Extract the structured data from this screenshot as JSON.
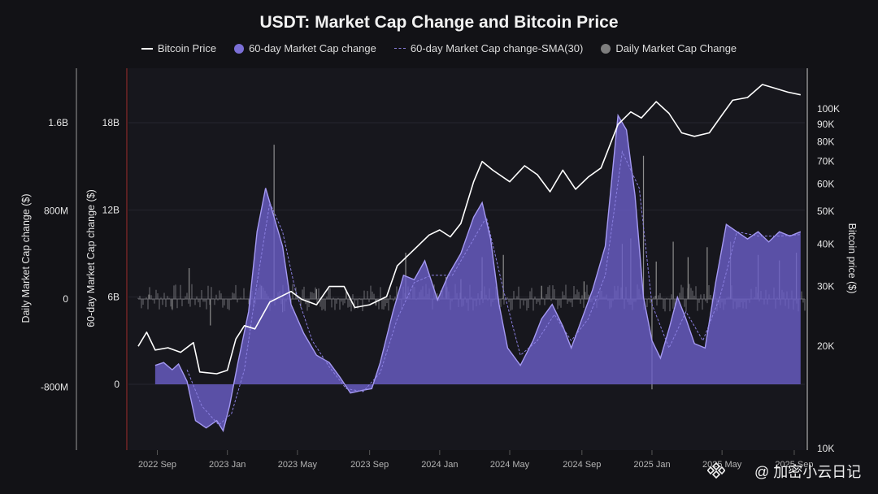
{
  "chart_data": {
    "type": "line+area",
    "title": "USDT: Market Cap Change and Bitcoin Price",
    "legend": [
      "Bitcoin Price",
      "60-day Market Cap change",
      "60-day Market Cap change-SMA(30)",
      "Daily Market Cap Change"
    ],
    "colors": {
      "btc": "#ffffff",
      "area": "#7b6fd6",
      "sma": "#8a7fe0",
      "daily": "#8e8e8e"
    },
    "left_axis_1": {
      "label": "Daily Market Cap change ($)",
      "ticks": [
        "1.6B",
        "800M",
        "0",
        "-800M"
      ],
      "values": [
        1.6,
        0.8,
        0,
        -0.8
      ]
    },
    "left_axis_2": {
      "label": "60-day Market Cap change ($)",
      "ticks": [
        "18B",
        "12B",
        "6B",
        "0"
      ],
      "values": [
        18,
        12,
        6,
        0
      ]
    },
    "right_axis": {
      "label": "Bitcoin price ($)",
      "ticks": [
        "100K",
        "90K",
        "80K",
        "70K",
        "60K",
        "50K",
        "40K",
        "30K",
        "20K",
        "10K"
      ],
      "values": [
        100,
        90,
        80,
        70,
        60,
        50,
        40,
        30,
        20,
        10
      ],
      "scale": "log"
    },
    "x_ticks": [
      "2022 Sep",
      "2023 Jan",
      "2023 May",
      "2023 Sep",
      "2024 Jan",
      "2024 May",
      "2024 Sep",
      "2025 Jan",
      "2025 May",
      "2025 Sep"
    ],
    "x_tick_t": [
      2022.67,
      2023.0,
      2023.33,
      2023.67,
      2024.0,
      2024.33,
      2024.67,
      2025.0,
      2025.33,
      2025.67
    ],
    "x_range": [
      2022.58,
      2025.72
    ],
    "btc_price_k": [
      [
        2022.58,
        20
      ],
      [
        2022.62,
        22
      ],
      [
        2022.66,
        19.5
      ],
      [
        2022.72,
        19.8
      ],
      [
        2022.78,
        19.2
      ],
      [
        2022.84,
        20.5
      ],
      [
        2022.87,
        16.8
      ],
      [
        2022.95,
        16.6
      ],
      [
        2023.0,
        17
      ],
      [
        2023.04,
        21
      ],
      [
        2023.08,
        23
      ],
      [
        2023.13,
        22.5
      ],
      [
        2023.2,
        27
      ],
      [
        2023.3,
        29
      ],
      [
        2023.35,
        27.5
      ],
      [
        2023.42,
        26.5
      ],
      [
        2023.48,
        30
      ],
      [
        2023.55,
        30
      ],
      [
        2023.6,
        26
      ],
      [
        2023.67,
        26.5
      ],
      [
        2023.75,
        28
      ],
      [
        2023.8,
        34.5
      ],
      [
        2023.86,
        37.5
      ],
      [
        2023.95,
        42.5
      ],
      [
        2024.0,
        44
      ],
      [
        2024.05,
        42
      ],
      [
        2024.1,
        46
      ],
      [
        2024.16,
        61
      ],
      [
        2024.2,
        70
      ],
      [
        2024.25,
        66
      ],
      [
        2024.33,
        61
      ],
      [
        2024.4,
        68
      ],
      [
        2024.46,
        64
      ],
      [
        2024.52,
        57
      ],
      [
        2024.58,
        66
      ],
      [
        2024.64,
        58
      ],
      [
        2024.7,
        63
      ],
      [
        2024.76,
        67
      ],
      [
        2024.84,
        90
      ],
      [
        2024.9,
        98
      ],
      [
        2024.95,
        94
      ],
      [
        2025.02,
        105
      ],
      [
        2025.08,
        97
      ],
      [
        2025.14,
        85
      ],
      [
        2025.2,
        83
      ],
      [
        2025.27,
        85
      ],
      [
        2025.33,
        96
      ],
      [
        2025.38,
        106
      ],
      [
        2025.45,
        108
      ],
      [
        2025.52,
        118
      ],
      [
        2025.58,
        115
      ],
      [
        2025.64,
        112
      ],
      [
        2025.7,
        110
      ]
    ],
    "mcap_60d_b": [
      [
        2022.66,
        1.3
      ],
      [
        2022.7,
        1.5
      ],
      [
        2022.74,
        1.0
      ],
      [
        2022.77,
        1.4
      ],
      [
        2022.81,
        0.2
      ],
      [
        2022.85,
        -2.5
      ],
      [
        2022.9,
        -3.0
      ],
      [
        2022.95,
        -2.5
      ],
      [
        2022.98,
        -3.2
      ],
      [
        2023.01,
        -1.5
      ],
      [
        2023.05,
        1.5
      ],
      [
        2023.1,
        5.0
      ],
      [
        2023.14,
        10.5
      ],
      [
        2023.18,
        13.5
      ],
      [
        2023.22,
        11.5
      ],
      [
        2023.26,
        9.5
      ],
      [
        2023.3,
        5.5
      ],
      [
        2023.36,
        3.5
      ],
      [
        2023.42,
        2.0
      ],
      [
        2023.48,
        1.5
      ],
      [
        2023.53,
        0.5
      ],
      [
        2023.58,
        -0.6
      ],
      [
        2023.64,
        -0.4
      ],
      [
        2023.68,
        -0.3
      ],
      [
        2023.72,
        1.5
      ],
      [
        2023.78,
        5.0
      ],
      [
        2023.83,
        7.5
      ],
      [
        2023.88,
        7.2
      ],
      [
        2023.93,
        8.5
      ],
      [
        2023.99,
        5.8
      ],
      [
        2024.04,
        7.5
      ],
      [
        2024.1,
        9.0
      ],
      [
        2024.16,
        11.5
      ],
      [
        2024.2,
        12.5
      ],
      [
        2024.24,
        10.0
      ],
      [
        2024.28,
        5.5
      ],
      [
        2024.32,
        2.5
      ],
      [
        2024.38,
        1.3
      ],
      [
        2024.44,
        3.0
      ],
      [
        2024.48,
        4.5
      ],
      [
        2024.53,
        5.5
      ],
      [
        2024.58,
        4.0
      ],
      [
        2024.62,
        2.5
      ],
      [
        2024.67,
        4.5
      ],
      [
        2024.72,
        6.5
      ],
      [
        2024.78,
        9.5
      ],
      [
        2024.84,
        18.5
      ],
      [
        2024.88,
        17.5
      ],
      [
        2024.92,
        13.0
      ],
      [
        2024.96,
        6.0
      ],
      [
        2025.0,
        3.0
      ],
      [
        2025.04,
        1.8
      ],
      [
        2025.08,
        3.8
      ],
      [
        2025.12,
        6.0
      ],
      [
        2025.16,
        4.5
      ],
      [
        2025.2,
        2.8
      ],
      [
        2025.25,
        2.5
      ],
      [
        2025.3,
        7.0
      ],
      [
        2025.35,
        11.0
      ],
      [
        2025.4,
        10.5
      ],
      [
        2025.45,
        10.0
      ],
      [
        2025.5,
        10.5
      ],
      [
        2025.55,
        9.8
      ],
      [
        2025.6,
        10.5
      ],
      [
        2025.65,
        10.2
      ],
      [
        2025.7,
        10.5
      ]
    ],
    "mcap_sma30_b": [
      [
        2022.81,
        1.0
      ],
      [
        2022.88,
        -1.5
      ],
      [
        2022.96,
        -2.8
      ],
      [
        2023.02,
        -2.0
      ],
      [
        2023.08,
        1.0
      ],
      [
        2023.14,
        7.0
      ],
      [
        2023.2,
        12.5
      ],
      [
        2023.26,
        10.5
      ],
      [
        2023.32,
        6.5
      ],
      [
        2023.4,
        3.0
      ],
      [
        2023.48,
        1.2
      ],
      [
        2023.56,
        -0.3
      ],
      [
        2023.64,
        -0.5
      ],
      [
        2023.72,
        0.8
      ],
      [
        2023.8,
        4.5
      ],
      [
        2023.88,
        7.0
      ],
      [
        2023.96,
        7.5
      ],
      [
        2024.06,
        7.5
      ],
      [
        2024.14,
        9.5
      ],
      [
        2024.22,
        11.5
      ],
      [
        2024.3,
        6.5
      ],
      [
        2024.38,
        2.0
      ],
      [
        2024.46,
        3.0
      ],
      [
        2024.54,
        4.8
      ],
      [
        2024.62,
        3.0
      ],
      [
        2024.7,
        4.5
      ],
      [
        2024.78,
        7.5
      ],
      [
        2024.86,
        16.0
      ],
      [
        2024.94,
        13.5
      ],
      [
        2025.0,
        5.5
      ],
      [
        2025.08,
        2.5
      ],
      [
        2025.16,
        5.0
      ],
      [
        2025.24,
        3.0
      ],
      [
        2025.32,
        6.0
      ],
      [
        2025.4,
        10.5
      ],
      [
        2025.5,
        10.2
      ],
      [
        2025.6,
        10.2
      ],
      [
        2025.7,
        10.3
      ]
    ],
    "daily_spikes_m": [
      [
        2022.63,
        40
      ],
      [
        2022.74,
        -90
      ],
      [
        2022.82,
        280
      ],
      [
        2022.92,
        -240
      ],
      [
        2023.16,
        120
      ],
      [
        2023.22,
        1400
      ],
      [
        2023.26,
        -120
      ],
      [
        2023.42,
        90
      ],
      [
        2023.56,
        80
      ],
      [
        2023.7,
        -60
      ],
      [
        2023.84,
        420
      ],
      [
        2024.03,
        200
      ],
      [
        2024.1,
        180
      ],
      [
        2024.2,
        380
      ],
      [
        2024.3,
        400
      ],
      [
        2024.48,
        120
      ],
      [
        2024.68,
        160
      ],
      [
        2024.86,
        500
      ],
      [
        2024.9,
        550
      ],
      [
        2024.96,
        1300
      ],
      [
        2025.0,
        -820
      ],
      [
        2025.02,
        340
      ],
      [
        2025.1,
        520
      ],
      [
        2025.17,
        380
      ],
      [
        2025.26,
        470
      ],
      [
        2025.37,
        520
      ],
      [
        2025.5,
        400
      ],
      [
        2025.6,
        350
      ],
      [
        2025.68,
        420
      ]
    ]
  },
  "watermark": {
    "text": "@ 加密小云日记",
    "icon": "binance-square-icon"
  }
}
